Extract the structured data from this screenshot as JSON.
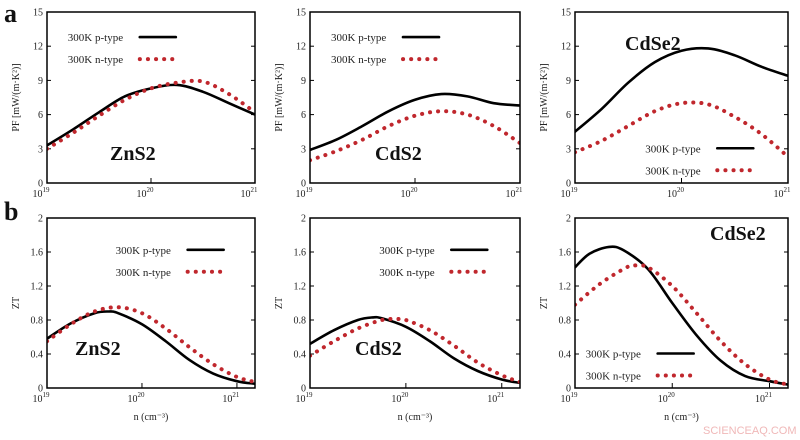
{
  "figure": {
    "panel_labels": [
      "a",
      "b"
    ],
    "watermark": "SCIENCEAQ.COM"
  },
  "colors": {
    "p_type": "#000000",
    "n_type": "#c0272d"
  },
  "chart_data": [
    {
      "type": "line",
      "row": 0,
      "material": "ZnS2",
      "ylabel": "PF [mW/(m·K²)]",
      "xlabel": "",
      "xscale": "log",
      "xlim": [
        1e+19,
        1e+21
      ],
      "ylim": [
        0,
        15
      ],
      "yticks": [
        0,
        3,
        6,
        9,
        12,
        15
      ],
      "xticks": [
        "10^19",
        "10^20",
        "10^21"
      ],
      "legend": "top-left",
      "series": [
        {
          "name": "300K p-type",
          "style": "solid",
          "x": [
            1e+19,
            1.78e+19,
            3.16e+19,
            5.62e+19,
            1e+20,
            1.78e+20,
            3.16e+20,
            5.62e+20,
            1e+21
          ],
          "y": [
            3.3,
            4.7,
            6.2,
            7.6,
            8.3,
            8.6,
            8.0,
            7.0,
            6.0
          ]
        },
        {
          "name": "300K n-type",
          "style": "dotted",
          "x": [
            1e+19,
            1.78e+19,
            3.16e+19,
            5.62e+19,
            1e+20,
            1.78e+20,
            3.16e+20,
            5.62e+20,
            1e+21
          ],
          "y": [
            3.0,
            4.4,
            5.9,
            7.3,
            8.3,
            8.8,
            8.9,
            7.8,
            6.2
          ]
        }
      ]
    },
    {
      "type": "line",
      "row": 0,
      "material": "CdS2",
      "ylabel": "PF [mW/(m·K²)]",
      "xlabel": "",
      "xscale": "log",
      "xlim": [
        1e+19,
        1e+21
      ],
      "ylim": [
        0,
        15
      ],
      "yticks": [
        0,
        3,
        6,
        9,
        12,
        15
      ],
      "xticks": [
        "10^19",
        "10^20",
        "10^21"
      ],
      "legend": "top-left",
      "series": [
        {
          "name": "300K p-type",
          "style": "solid",
          "x": [
            1e+19,
            1.78e+19,
            3.16e+19,
            5.62e+19,
            1e+20,
            1.78e+20,
            3.16e+20,
            5.62e+20,
            1e+21
          ],
          "y": [
            2.9,
            3.8,
            5.0,
            6.3,
            7.3,
            7.8,
            7.6,
            7.0,
            6.8
          ]
        },
        {
          "name": "300K n-type",
          "style": "dotted",
          "x": [
            1e+19,
            1.78e+19,
            3.16e+19,
            5.62e+19,
            1e+20,
            1.78e+20,
            3.16e+20,
            5.62e+20,
            1e+21
          ],
          "y": [
            2.0,
            2.8,
            3.8,
            5.0,
            5.9,
            6.3,
            6.0,
            5.0,
            3.5
          ]
        }
      ]
    },
    {
      "type": "line",
      "row": 0,
      "material": "CdSe2",
      "ylabel": "PF [mW/(m·K²)]",
      "xlabel": "",
      "xscale": "log",
      "xlim": [
        1e+19,
        1e+21
      ],
      "ylim": [
        0,
        15
      ],
      "yticks": [
        0,
        3,
        6,
        9,
        12,
        15
      ],
      "xticks": [
        "10^19",
        "10^20",
        "10^21"
      ],
      "legend": "bottom-right",
      "series": [
        {
          "name": "300K p-type",
          "style": "solid",
          "x": [
            1e+19,
            1.78e+19,
            3.16e+19,
            5.62e+19,
            1e+20,
            1.78e+20,
            3.16e+20,
            5.62e+20,
            1e+21
          ],
          "y": [
            4.5,
            6.5,
            8.8,
            10.6,
            11.6,
            11.8,
            11.2,
            10.2,
            9.4
          ]
        },
        {
          "name": "300K n-type",
          "style": "dotted",
          "x": [
            1e+19,
            1.78e+19,
            3.16e+19,
            5.62e+19,
            1e+20,
            1.78e+20,
            3.16e+20,
            5.62e+20,
            1e+21
          ],
          "y": [
            2.7,
            3.7,
            5.0,
            6.3,
            7.0,
            6.9,
            5.8,
            4.3,
            2.3
          ]
        }
      ]
    },
    {
      "type": "line",
      "row": 1,
      "material": "ZnS2",
      "ylabel": "ZT",
      "xlabel": "n (cm⁻³)",
      "xscale": "log",
      "xlim": [
        1e+19,
        1.55e+21
      ],
      "ylim": [
        0,
        2
      ],
      "yticks": [
        0,
        0.4,
        0.8,
        1.2,
        1.6,
        2
      ],
      "xticks": [
        "10^19",
        "10^20",
        "10^21"
      ],
      "legend": "top-right",
      "series": [
        {
          "name": "300K p-type",
          "style": "solid",
          "x": [
            1e+19,
            1.78e+19,
            3.16e+19,
            4.47e+19,
            5.62e+19,
            1e+20,
            1.78e+20,
            3.16e+20,
            5.62e+20,
            1e+21,
            1.55e+21
          ],
          "y": [
            0.58,
            0.76,
            0.88,
            0.9,
            0.88,
            0.75,
            0.55,
            0.33,
            0.17,
            0.08,
            0.05
          ]
        },
        {
          "name": "300K n-type",
          "style": "dotted",
          "x": [
            1e+19,
            1.78e+19,
            3.16e+19,
            5.62e+19,
            1e+20,
            1.78e+20,
            3.16e+20,
            5.62e+20,
            1e+21,
            1.55e+21
          ],
          "y": [
            0.55,
            0.75,
            0.9,
            0.95,
            0.88,
            0.7,
            0.48,
            0.28,
            0.13,
            0.07
          ]
        }
      ]
    },
    {
      "type": "line",
      "row": 1,
      "material": "CdS2",
      "ylabel": "ZT",
      "xlabel": "n (cm⁻³)",
      "xscale": "log",
      "xlim": [
        1e+19,
        1.55e+21
      ],
      "ylim": [
        0,
        2
      ],
      "yticks": [
        0,
        0.4,
        0.8,
        1.2,
        1.6,
        2
      ],
      "xticks": [
        "10^19",
        "10^20",
        "10^21"
      ],
      "legend": "top-right",
      "series": [
        {
          "name": "300K p-type",
          "style": "solid",
          "x": [
            1e+19,
            1.78e+19,
            3.16e+19,
            4.47e+19,
            5.62e+19,
            1e+20,
            1.78e+20,
            3.16e+20,
            5.62e+20,
            1e+21,
            1.55e+21
          ],
          "y": [
            0.52,
            0.68,
            0.8,
            0.83,
            0.82,
            0.72,
            0.55,
            0.35,
            0.2,
            0.1,
            0.06
          ]
        },
        {
          "name": "300K n-type",
          "style": "dotted",
          "x": [
            1e+19,
            1.78e+19,
            3.16e+19,
            5.62e+19,
            7.94e+19,
            1e+20,
            1.78e+20,
            3.16e+20,
            5.62e+20,
            1e+21,
            1.55e+21
          ],
          "y": [
            0.38,
            0.55,
            0.7,
            0.8,
            0.81,
            0.8,
            0.68,
            0.5,
            0.3,
            0.15,
            0.07
          ]
        }
      ]
    },
    {
      "type": "line",
      "row": 1,
      "material": "CdSe2",
      "ylabel": "ZT",
      "xlabel": "n (cm⁻³)",
      "xscale": "log",
      "xlim": [
        1e+19,
        1.55e+21
      ],
      "ylim": [
        0,
        2
      ],
      "yticks": [
        0,
        0.4,
        0.8,
        1.2,
        1.6,
        2
      ],
      "xticks": [
        "10^19",
        "10^20",
        "10^21"
      ],
      "legend": "bottom-left",
      "series": [
        {
          "name": "300K p-type",
          "style": "solid",
          "x": [
            1e+19,
            1.41e+19,
            2.24e+19,
            3.16e+19,
            5.62e+19,
            1e+20,
            1.78e+20,
            3.16e+20,
            5.62e+20,
            1e+21,
            1.55e+21
          ],
          "y": [
            1.42,
            1.58,
            1.66,
            1.62,
            1.4,
            1.0,
            0.62,
            0.32,
            0.14,
            0.08,
            0.04
          ]
        },
        {
          "name": "300K n-type",
          "style": "dotted",
          "x": [
            1e+19,
            1.78e+19,
            3.16e+19,
            3.98e+19,
            5.62e+19,
            1e+20,
            1.78e+20,
            3.16e+20,
            5.62e+20,
            1e+21,
            1.55e+21
          ],
          "y": [
            0.98,
            1.22,
            1.4,
            1.44,
            1.42,
            1.2,
            0.88,
            0.55,
            0.28,
            0.1,
            0.04
          ]
        }
      ]
    }
  ]
}
